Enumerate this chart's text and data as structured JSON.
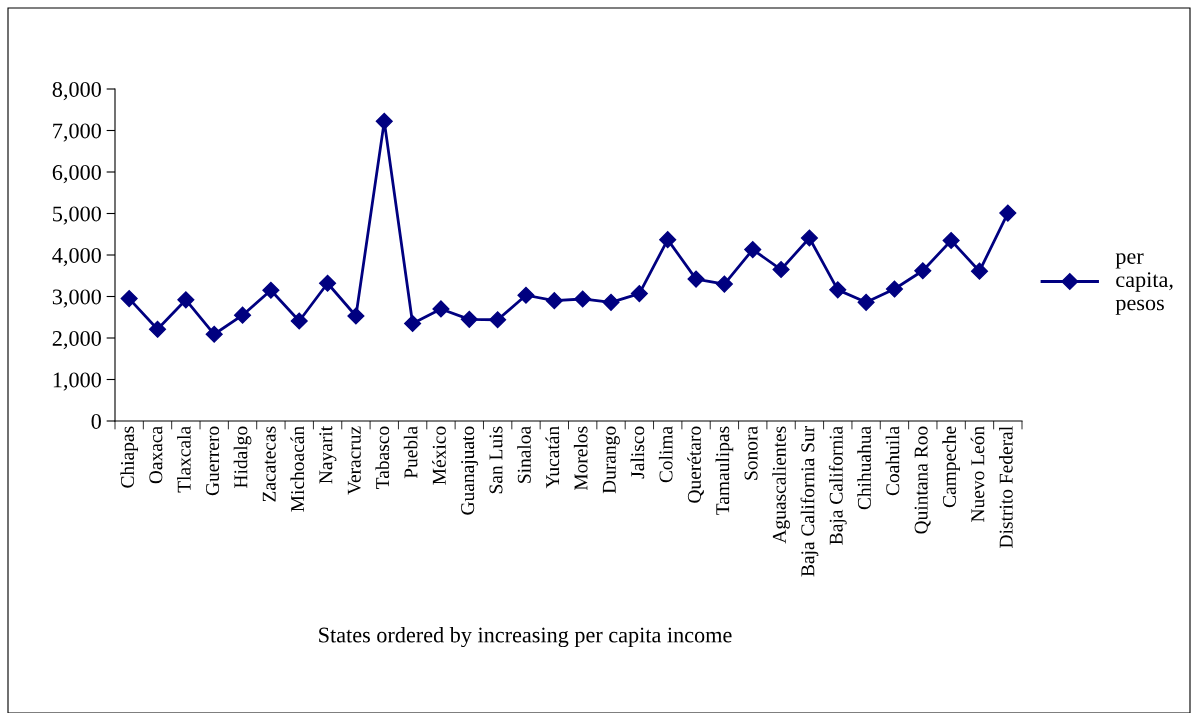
{
  "chart_data": {
    "type": "line",
    "xlabel": "States ordered by increasing per capita income",
    "categories": [
      "Chiapas",
      "Oaxaca",
      "Tlaxcala",
      "Guerrero",
      "Hidalgo",
      "Zacatecas",
      "Michoacán",
      "Nayarit",
      "Veracruz",
      "Tabasco",
      "Puebla",
      "México",
      "Guanajuato",
      "San Luis",
      "Sinaloa",
      "Yucatán",
      "Morelos",
      "Durango",
      "Jalisco",
      "Colima",
      "Querétaro",
      "Tamaulipas",
      "Sonora",
      "Aguascalientes",
      "Baja California Sur",
      "Baja California",
      "Chihuahua",
      "Coahuila",
      "Quintana Roo",
      "Campeche",
      "Nuevo León",
      "Distrito Federal"
    ],
    "series": [
      {
        "name": "per capita, pesos",
        "color": "#000080",
        "values": [
          2950,
          2210,
          2920,
          2090,
          2550,
          3150,
          2410,
          3320,
          2530,
          7220,
          2350,
          2700,
          2450,
          2440,
          3030,
          2900,
          2940,
          2860,
          3070,
          4370,
          3420,
          3300,
          4130,
          3650,
          4410,
          3160,
          2860,
          3180,
          3620,
          4350,
          3610,
          5010
        ]
      }
    ],
    "ylim": [
      0,
      8000
    ],
    "yticks": [
      {
        "value": 0,
        "label": "0"
      },
      {
        "value": 1000,
        "label": "1,000"
      },
      {
        "value": 2000,
        "label": "2,000"
      },
      {
        "value": 3000,
        "label": "3,000"
      },
      {
        "value": 4000,
        "label": "4,000"
      },
      {
        "value": 5000,
        "label": "5,000"
      },
      {
        "value": 6000,
        "label": "6,000"
      },
      {
        "value": 7000,
        "label": "7,000"
      },
      {
        "value": 8000,
        "label": "8,000"
      }
    ],
    "marker": "diamond",
    "line_style": "solid",
    "grid": false,
    "legend": "right"
  }
}
